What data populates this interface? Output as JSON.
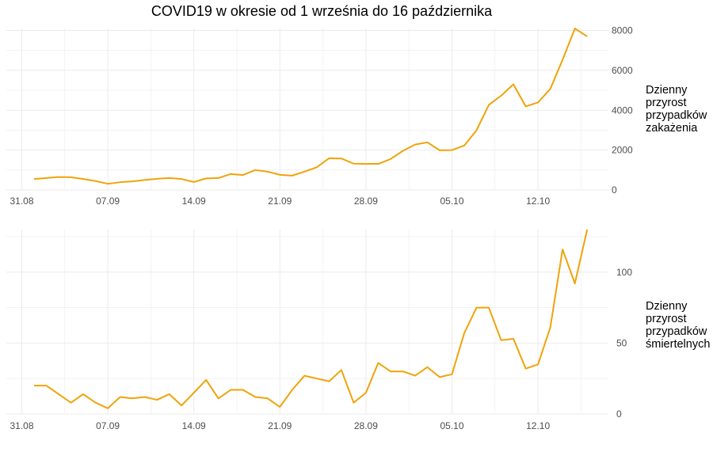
{
  "title": "COVID19 w okresie od 1 września do 16 października",
  "colors": {
    "line": "#F0A30A",
    "grid": "#EBEBEB",
    "tick_text": "#4D4D4D"
  },
  "chart_data": [
    {
      "type": "line",
      "x_tick_labels": [
        "31.08",
        "07.09",
        "14.09",
        "21.09",
        "28.09",
        "05.10",
        "12.10"
      ],
      "x": [
        "01.09",
        "02.09",
        "03.09",
        "04.09",
        "05.09",
        "06.09",
        "07.09",
        "08.09",
        "09.09",
        "10.09",
        "11.09",
        "12.09",
        "13.09",
        "14.09",
        "15.09",
        "16.09",
        "17.09",
        "18.09",
        "19.09",
        "20.09",
        "21.09",
        "22.09",
        "23.09",
        "24.09",
        "25.09",
        "26.09",
        "27.09",
        "28.09",
        "29.09",
        "30.09",
        "01.10",
        "02.10",
        "03.10",
        "04.10",
        "05.10",
        "06.10",
        "07.10",
        "08.10",
        "09.10",
        "10.10",
        "11.10",
        "12.10",
        "13.10",
        "14.10",
        "15.10",
        "16.10"
      ],
      "values": [
        550,
        600,
        650,
        640,
        550,
        450,
        310,
        390,
        430,
        500,
        560,
        600,
        550,
        400,
        580,
        600,
        800,
        750,
        1000,
        920,
        760,
        720,
        920,
        1140,
        1590,
        1580,
        1320,
        1310,
        1310,
        1550,
        1960,
        2280,
        2390,
        1990,
        2000,
        2230,
        3000,
        4270,
        4730,
        5300,
        4190,
        4390,
        5070,
        6530,
        8100,
        7700
      ],
      "ylabel": [
        "Dzienny",
        "przyrost",
        "przypadków",
        "zakażenia"
      ],
      "y_ticks": [
        0,
        2000,
        4000,
        6000,
        8000
      ],
      "ylim": [
        0,
        8100
      ],
      "grid": true
    },
    {
      "type": "line",
      "x_tick_labels": [
        "31.08",
        "07.09",
        "14.09",
        "21.09",
        "28.09",
        "05.10",
        "12.10"
      ],
      "x": [
        "01.09",
        "02.09",
        "03.09",
        "04.09",
        "05.09",
        "06.09",
        "07.09",
        "08.09",
        "09.09",
        "10.09",
        "11.09",
        "12.09",
        "13.09",
        "14.09",
        "15.09",
        "16.09",
        "17.09",
        "18.09",
        "19.09",
        "20.09",
        "21.09",
        "22.09",
        "23.09",
        "24.09",
        "25.09",
        "26.09",
        "27.09",
        "28.09",
        "29.09",
        "30.09",
        "01.10",
        "02.10",
        "03.10",
        "04.10",
        "05.10",
        "06.10",
        "07.10",
        "08.10",
        "09.10",
        "10.10",
        "11.10",
        "12.10",
        "13.10",
        "14.10",
        "15.10",
        "16.10"
      ],
      "values": [
        20,
        20,
        14,
        8,
        14,
        8,
        4,
        12,
        11,
        12,
        10,
        14,
        6,
        15,
        24,
        11,
        17,
        17,
        12,
        11,
        5,
        17,
        27,
        25,
        23,
        31,
        8,
        15,
        36,
        30,
        30,
        27,
        33,
        26,
        28,
        57,
        75,
        75,
        52,
        53,
        32,
        35,
        61,
        116,
        92,
        130
      ],
      "ylabel": [
        "Dzienny",
        "przyrost",
        "przypadków",
        "śmiertelnych"
      ],
      "y_ticks": [
        0,
        50,
        100
      ],
      "ylim": [
        0,
        130
      ],
      "grid": true
    }
  ]
}
